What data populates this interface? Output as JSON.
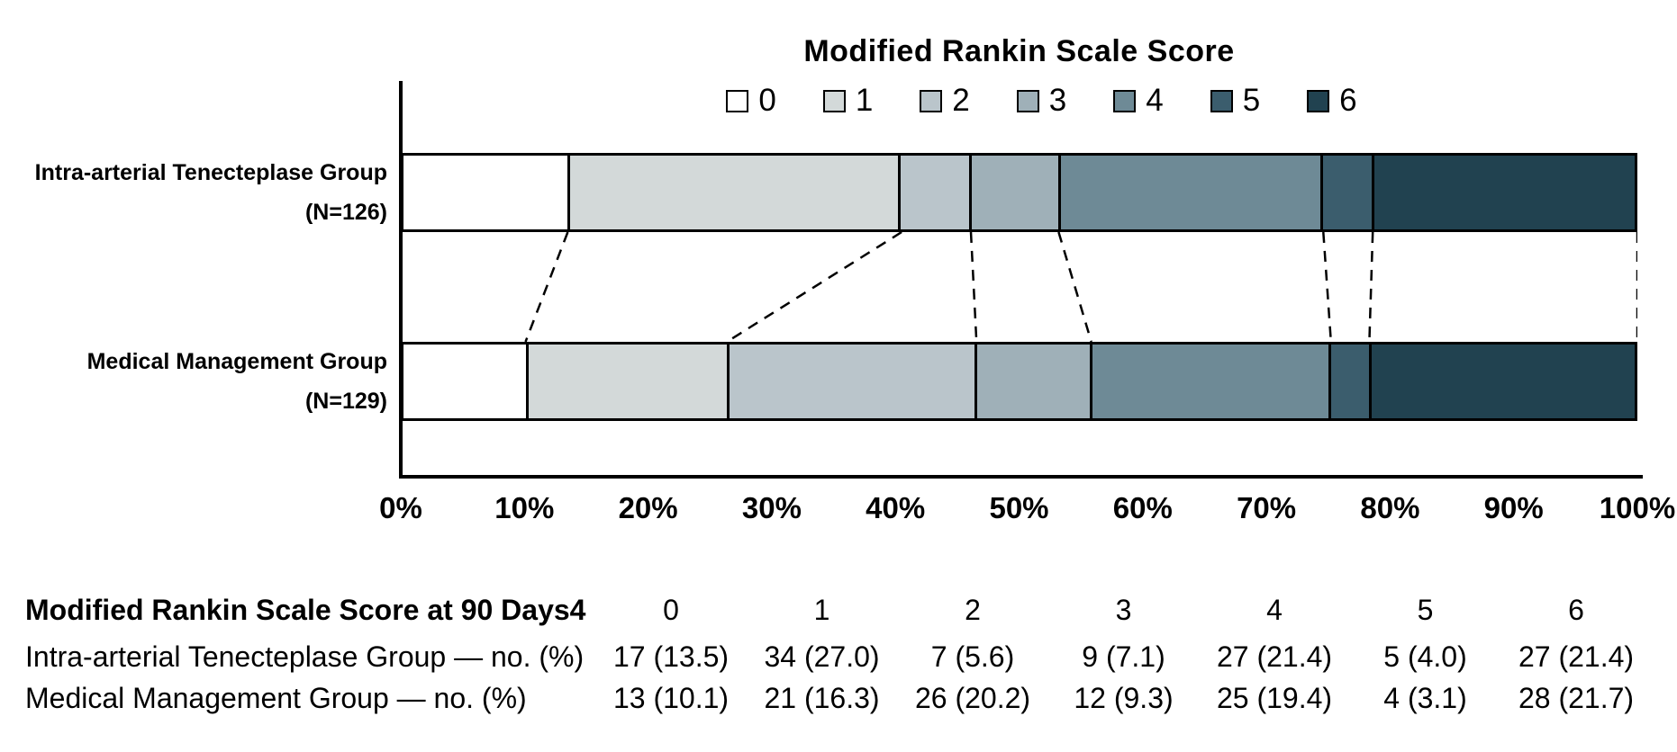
{
  "chart_data": {
    "type": "bar",
    "subtype": "stacked-horizontal",
    "title": "Modified Rankin Scale Score",
    "legend": {
      "position": "top",
      "labels": [
        "0",
        "1",
        "2",
        "3",
        "4",
        "5",
        "6"
      ]
    },
    "segment_colors": [
      "#ffffff",
      "#d3d9d9",
      "#bac5cb",
      "#9fb0b8",
      "#6e8a96",
      "#3b5d6d",
      "#214250"
    ],
    "x_axis": {
      "min": 0,
      "max": 100,
      "ticks": [
        "0%",
        "10%",
        "20%",
        "30%",
        "40%",
        "50%",
        "60%",
        "70%",
        "80%",
        "90%",
        "100%"
      ]
    },
    "categories": [
      "0",
      "1",
      "2",
      "3",
      "4",
      "5",
      "6"
    ],
    "series": [
      {
        "name": "Intra-arterial Tenecteplase Group",
        "n_label": "(N=126)",
        "values": [
          13.5,
          27.0,
          5.6,
          7.1,
          21.4,
          4.0,
          21.4
        ]
      },
      {
        "name": "Medical Management Group",
        "n_label": "(N=129)",
        "values": [
          10.1,
          16.3,
          20.2,
          9.3,
          19.4,
          3.1,
          21.7
        ]
      }
    ],
    "connector_style": "dashed",
    "bar_outline_color": "#000000"
  },
  "table": {
    "header": {
      "label": "Modified Rankin Scale Score at 90 Days4",
      "columns": [
        "0",
        "1",
        "2",
        "3",
        "4",
        "5",
        "6"
      ]
    },
    "rows": [
      {
        "label": "Intra-arterial Tenecteplase Group — no. (%)",
        "values": [
          "17 (13.5)",
          "34 (27.0)",
          "7 (5.6)",
          "9 (7.1)",
          "27 (21.4)",
          "5 (4.0)",
          "27 (21.4)"
        ]
      },
      {
        "label": "Medical Management Group — no. (%)",
        "values": [
          "13 (10.1)",
          "21 (16.3)",
          "26 (20.2)",
          "12 (9.3)",
          "25 (19.4)",
          "4 (3.1)",
          "28 (21.7)"
        ]
      }
    ]
  }
}
